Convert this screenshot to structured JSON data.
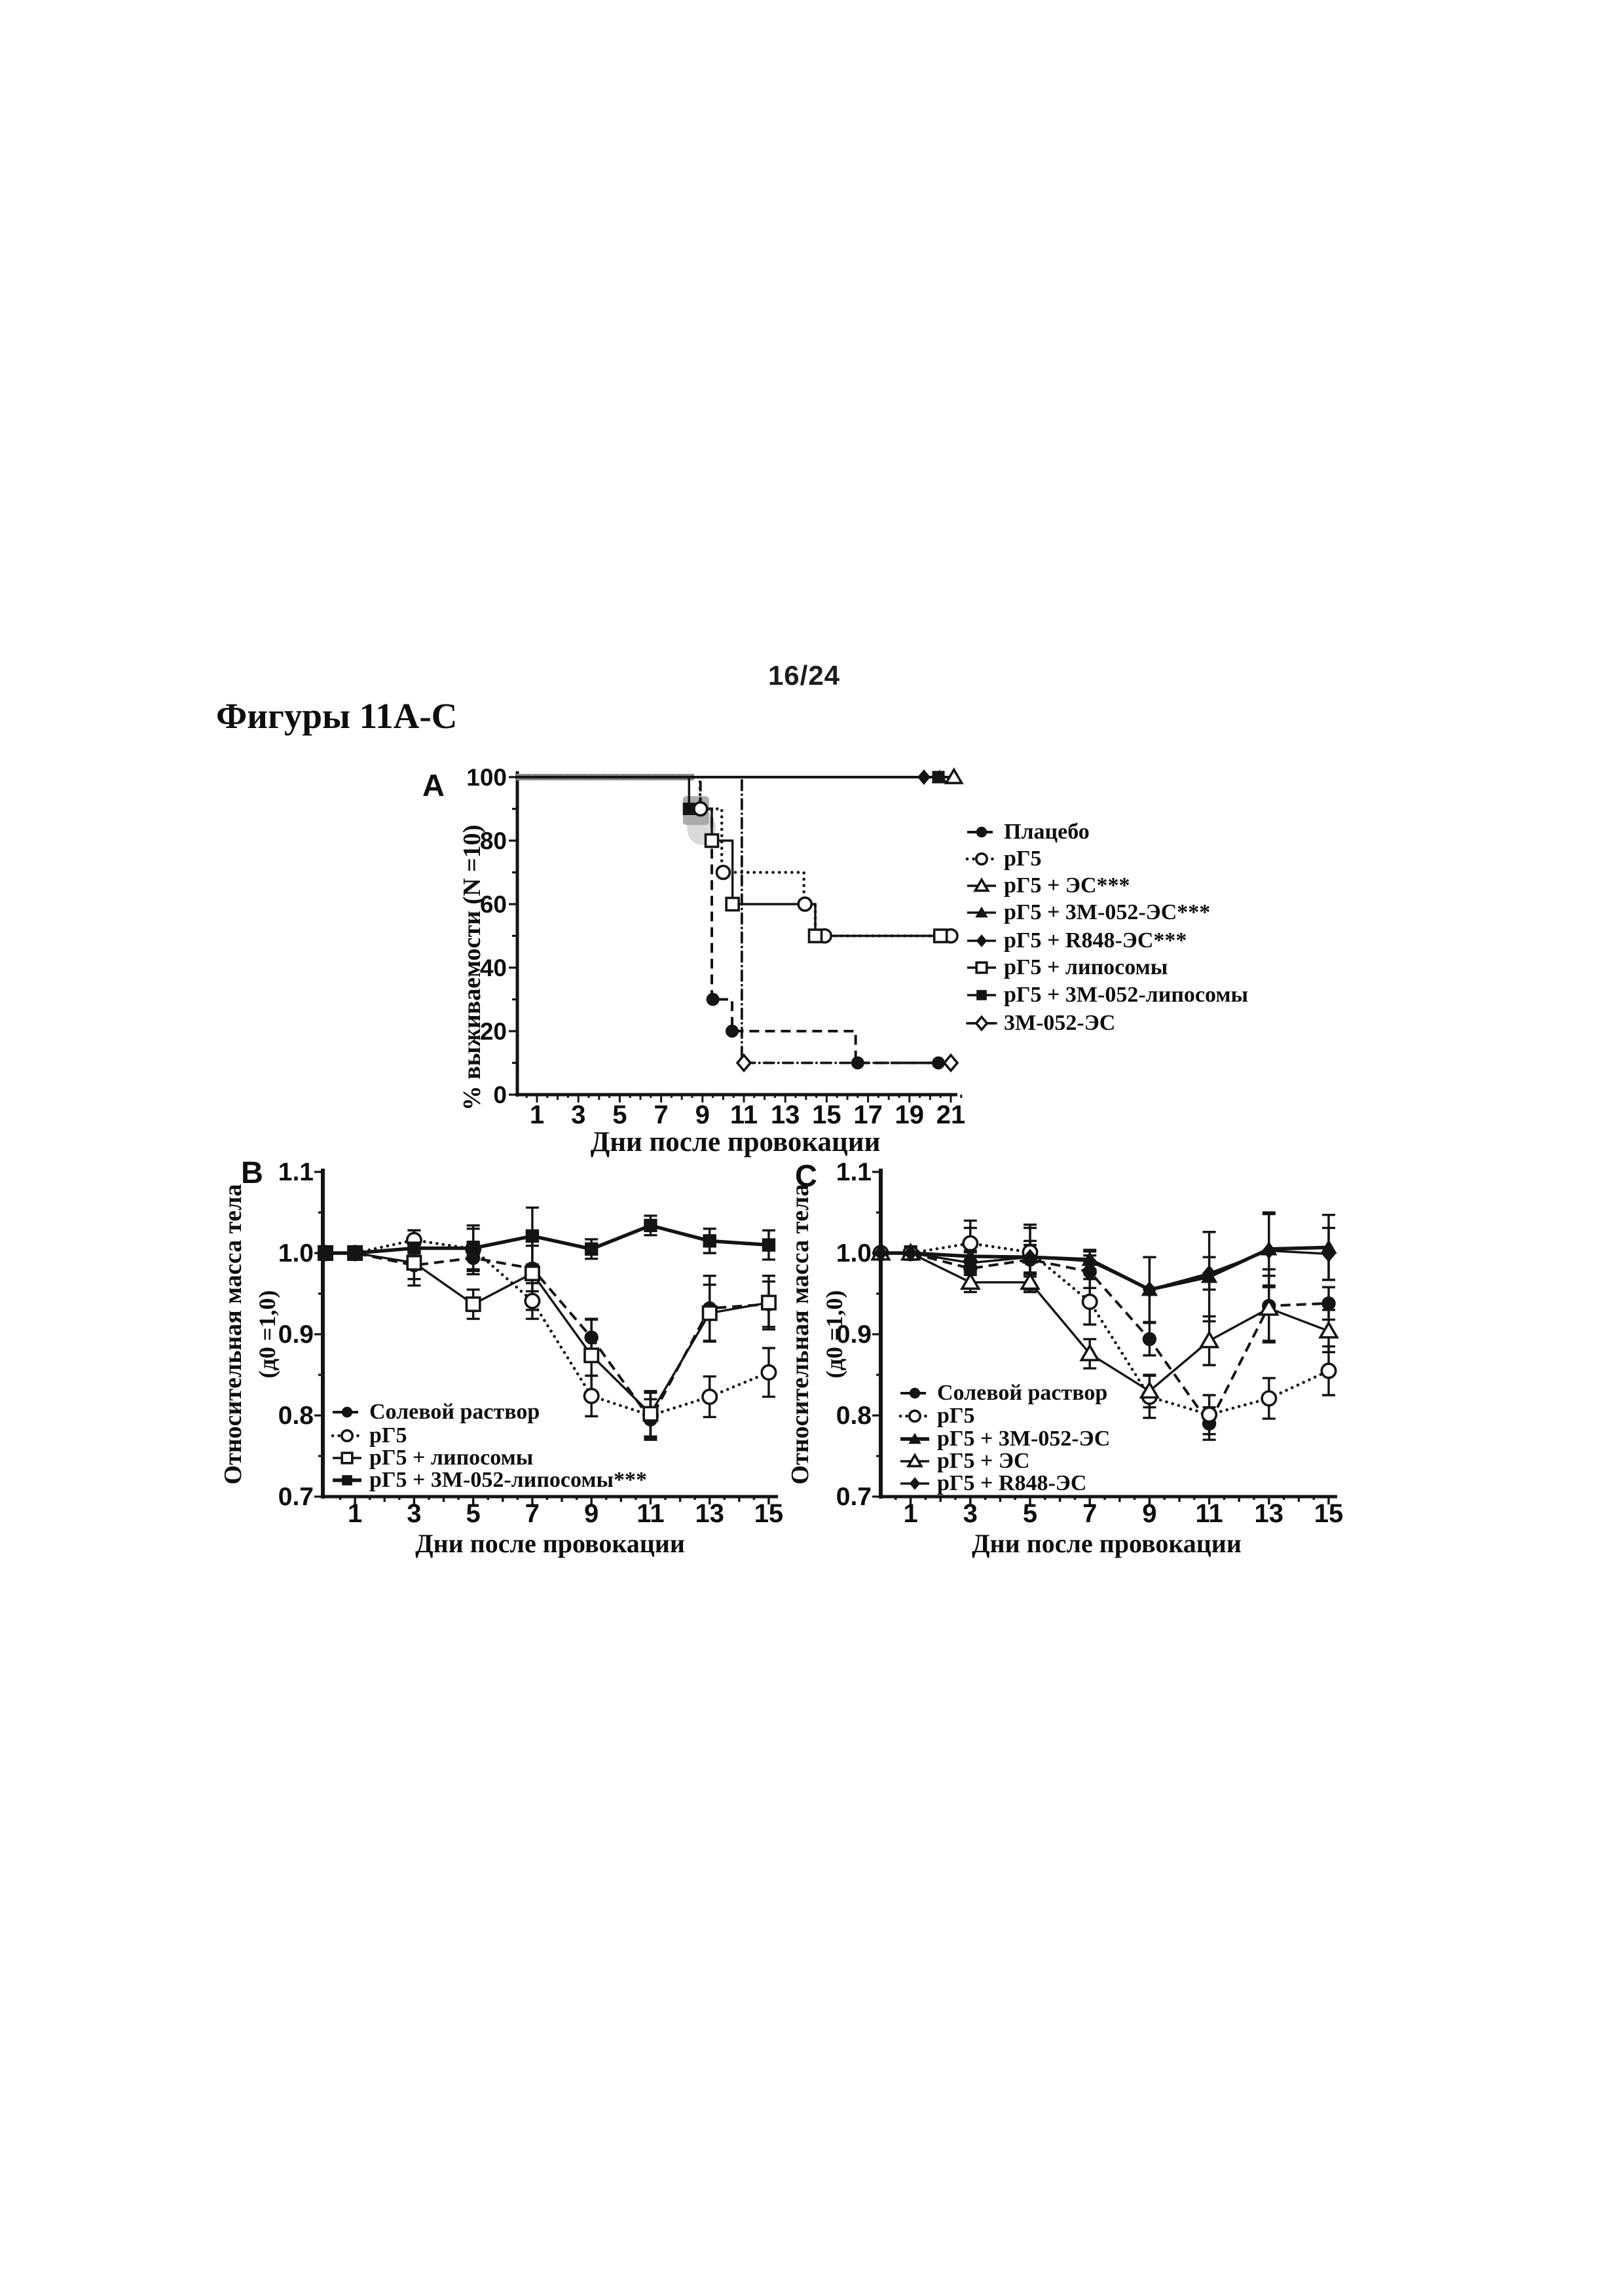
{
  "page": {
    "number": "16/24",
    "title": "Фигуры 11A-C"
  },
  "panels": {
    "a": {
      "label": "A"
    },
    "b": {
      "label": "B"
    },
    "c": {
      "label": "C"
    }
  },
  "chart_data": [
    {
      "id": "A",
      "type": "line",
      "subtype": "step-survival",
      "xlabel": "Дни после провокации",
      "ylabel": "% выживаемости (N =10)",
      "xlim": [
        0,
        21.6
      ],
      "ylim": [
        0,
        100
      ],
      "xticks": [
        1,
        3,
        5,
        7,
        9,
        11,
        13,
        15,
        17,
        19,
        21
      ],
      "yticks": [
        0,
        20,
        40,
        60,
        80,
        100
      ],
      "grid": false,
      "legend_position": "right",
      "series": [
        {
          "key": "placebo",
          "name": "Плацебо",
          "marker": "circle-filled",
          "line": "dashed",
          "steps": [
            [
              0,
              100
            ],
            [
              8.9,
              100
            ],
            [
              8.9,
              90
            ],
            [
              9.45,
              90
            ],
            [
              9.45,
              30
            ],
            [
              10.43,
              30
            ],
            [
              10.43,
              20
            ],
            [
              16.4,
              20
            ],
            [
              16.4,
              10
            ],
            [
              21,
              10
            ]
          ],
          "markers": [
            [
              9.5,
              30
            ],
            [
              10.43,
              20
            ],
            [
              16.5,
              10
            ],
            [
              20.4,
              10
            ]
          ]
        },
        {
          "key": "rg5",
          "name": "рГ5",
          "marker": "circle-open",
          "line": "dotted",
          "steps": [
            [
              0,
              100
            ],
            [
              8.88,
              100
            ],
            [
              8.88,
              90
            ],
            [
              9.93,
              90
            ],
            [
              9.93,
              70
            ],
            [
              13.9,
              70
            ],
            [
              13.9,
              60
            ],
            [
              14.45,
              60
            ],
            [
              14.45,
              50
            ],
            [
              21,
              50
            ]
          ],
          "markers": [
            [
              8.9,
              90
            ],
            [
              10,
              70
            ],
            [
              13.95,
              60
            ],
            [
              14.9,
              50
            ],
            [
              21,
              50
            ]
          ]
        },
        {
          "key": "rg5-es",
          "name": "рГ5 + ЭС***",
          "marker": "triangle-open",
          "line": "solid",
          "steps": [
            [
              0,
              100
            ],
            [
              21.15,
              100
            ]
          ],
          "markers": [
            [
              21.15,
              100
            ]
          ]
        },
        {
          "key": "rg5-3m052-es",
          "name": "рГ5 + 3М-052-ЭС***",
          "marker": "triangle-filled",
          "line": "solid",
          "steps": [
            [
              0,
              100
            ],
            [
              20.45,
              100
            ]
          ],
          "markers": [
            [
              20.45,
              100
            ]
          ]
        },
        {
          "key": "rg5-r848-es",
          "name": "рГ5 + R848-ЭС***",
          "marker": "diamond-filled",
          "line": "solid",
          "steps": [
            [
              0,
              100
            ],
            [
              19.7,
              100
            ]
          ],
          "markers": [
            [
              19.7,
              100
            ]
          ]
        },
        {
          "key": "rg5-liposomes",
          "name": "рГ5 + липосомы",
          "marker": "square-open",
          "line": "solid",
          "steps": [
            [
              0,
              100
            ],
            [
              8.35,
              100
            ],
            [
              8.35,
              90
            ],
            [
              9.45,
              90
            ],
            [
              9.45,
              80
            ],
            [
              10.45,
              80
            ],
            [
              10.45,
              60
            ],
            [
              14.45,
              60
            ],
            [
              14.45,
              50
            ],
            [
              21,
              50
            ]
          ],
          "markers": [
            [
              9.45,
              80
            ],
            [
              10.45,
              60
            ],
            [
              14.45,
              50
            ],
            [
              20.5,
              50
            ]
          ]
        },
        {
          "key": "rg5-3m052-liposomes",
          "name": "рГ5 + 3М-052-липосомы",
          "marker": "square-filled",
          "line": "solid",
          "steps": [
            [
              0,
              100
            ],
            [
              20.4,
              100
            ]
          ],
          "markers": [
            [
              8.35,
              90
            ],
            [
              20.4,
              100
            ]
          ]
        },
        {
          "key": "3m052-es",
          "name": "3М-052-ЭС",
          "marker": "diamond-open",
          "line": "dashdot",
          "steps": [
            [
              0,
              100
            ],
            [
              10.9,
              100
            ],
            [
              10.9,
              10
            ],
            [
              21,
              10
            ]
          ],
          "markers": [
            [
              11,
              10
            ],
            [
              21,
              10
            ]
          ]
        }
      ],
      "annotations": {
        "gray_highlight_at": [
          8.6,
          90
        ],
        "gray_top_line_until_day": 8.6
      }
    },
    {
      "id": "B",
      "type": "line",
      "xlabel": "Дни после провокации",
      "ylabel": "Относительная масса тела",
      "ylabel2": "(д0 =1,0)",
      "x": [
        0,
        1,
        3,
        5,
        7,
        9,
        11,
        13,
        15
      ],
      "xticks": [
        1,
        3,
        5,
        7,
        9,
        11,
        13,
        15
      ],
      "yticks": [
        0.7,
        0.8,
        0.9,
        1.0,
        1.1
      ],
      "ylim": [
        0.7,
        1.1
      ],
      "grid": false,
      "legend_position": "inside-bottom-left",
      "series": [
        {
          "key": "saline",
          "name": "Солевой раствор",
          "marker": "circle-filled",
          "line": "dashed",
          "values": [
            1.0,
            1.0,
            0.985,
            0.994,
            0.981,
            0.896,
            0.795,
            0.932,
            0.937
          ],
          "errors": [
            0,
            0.008,
            0.025,
            0.02,
            0.028,
            0.022,
            0.025,
            0.04,
            0.028
          ]
        },
        {
          "key": "rg5",
          "name": "рГ5",
          "marker": "circle-open",
          "line": "dotted",
          "values": [
            1.0,
            1.0,
            1.016,
            1.005,
            0.941,
            0.824,
            0.8,
            0.823,
            0.853
          ],
          "errors": [
            0,
            0.008,
            0.012,
            0.025,
            0.022,
            0.025,
            0.028,
            0.025,
            0.03
          ]
        },
        {
          "key": "rg5-liposomes",
          "name": "рГ5 + липосомы",
          "marker": "square-open",
          "line": "solid",
          "values": [
            1.0,
            1.0,
            0.988,
            0.937,
            0.975,
            0.874,
            0.802,
            0.926,
            0.939
          ],
          "errors": [
            0,
            0.008,
            0.02,
            0.018,
            0.045,
            0.045,
            0.028,
            0.035,
            0.033
          ]
        },
        {
          "key": "rg5-3m052-liposomes",
          "name": "рГ5 + 3М-052-липосомы***",
          "marker": "square-filled",
          "line": "solid-thick",
          "values": [
            1.0,
            1.0,
            1.006,
            1.006,
            1.021,
            1.005,
            1.034,
            1.015,
            1.01
          ],
          "errors": [
            0,
            0.008,
            0.022,
            0.028,
            0.035,
            0.012,
            0.012,
            0.015,
            0.018
          ]
        }
      ]
    },
    {
      "id": "C",
      "type": "line",
      "xlabel": "Дни после провокации",
      "ylabel": "Относительная масса тела",
      "ylabel2": "(д0 =1,0)",
      "x": [
        0,
        1,
        3,
        5,
        7,
        9,
        11,
        13,
        15
      ],
      "xticks": [
        1,
        3,
        5,
        7,
        9,
        11,
        13,
        15
      ],
      "yticks": [
        0.7,
        0.8,
        0.9,
        1.0,
        1.1
      ],
      "ylim": [
        0.7,
        1.1
      ],
      "grid": false,
      "legend_position": "inside-bottom-left",
      "series": [
        {
          "key": "saline",
          "name": "Солевой раствор",
          "marker": "circle-filled",
          "line": "dashed",
          "values": [
            1.0,
            1.0,
            0.981,
            0.992,
            0.977,
            0.894,
            0.79,
            0.935,
            0.938
          ],
          "errors": [
            0,
            0.008,
            0.02,
            0.018,
            0.02,
            0.02,
            0.02,
            0.045,
            0.02
          ]
        },
        {
          "key": "rg5",
          "name": "рГ5",
          "marker": "circle-open",
          "line": "dotted",
          "values": [
            1.0,
            1.0,
            1.012,
            1.001,
            0.94,
            0.823,
            0.801,
            0.821,
            0.855
          ],
          "errors": [
            0,
            0.008,
            0.028,
            0.03,
            0.028,
            0.026,
            0.024,
            0.025,
            0.03
          ]
        },
        {
          "key": "rg5-3m052-es",
          "name": "рГ5 + 3М-052-ЭС",
          "marker": "triangle-filled",
          "line": "solid-thick",
          "values": [
            1.0,
            1.0,
            0.996,
            0.995,
            0.992,
            0.955,
            0.971,
            1.005,
            1.007
          ],
          "errors": [
            0,
            0.008,
            0.035,
            0.04,
            0.012,
            0.04,
            0.055,
            0.045,
            0.04
          ]
        },
        {
          "key": "rg5-es",
          "name": "рГ5 + ЭС",
          "marker": "triangle-open",
          "line": "solid",
          "values": [
            1.0,
            1.0,
            0.964,
            0.964,
            0.876,
            0.83,
            0.892,
            0.932,
            0.904
          ],
          "errors": [
            0,
            0.008,
            0.012,
            0.012,
            0.018,
            0.02,
            0.03,
            0.04,
            0.026
          ]
        },
        {
          "key": "rg5-r848-es",
          "name": "рГ5 + R848-ЭС",
          "marker": "diamond-filled",
          "line": "solid",
          "values": [
            1.0,
            1.0,
            0.988,
            0.995,
            0.99,
            0.955,
            0.975,
            1.003,
            0.999
          ],
          "errors": [
            0,
            0.008,
            0.015,
            0.02,
            0.012,
            0.04,
            0.02,
            0.045,
            0.032
          ]
        }
      ]
    }
  ]
}
